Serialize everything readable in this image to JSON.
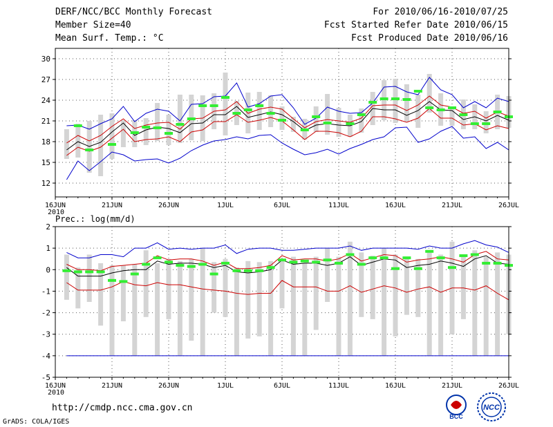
{
  "header": {
    "title": "DERF/NCC/BCC Monthly Forecast",
    "member_size": "Member Size=40",
    "variable": "Mean Surf. Temp.: °C",
    "period": "For 2010/06/16-2010/07/25",
    "started": "Fcst Started Refer Date 2010/06/15",
    "produced": "Fcst Produced Date 2010/06/16"
  },
  "footer": {
    "url": "http://cmdp.ncc.cma.gov.cn",
    "grads": "GrADS: COLA/IGES",
    "logo_bcc": "BCC",
    "logo_ncc": "NCC"
  },
  "colors": {
    "ensemble_mean": "#000000",
    "spread": "#cc0000",
    "extremes": "#0000cc",
    "bars": "#d4d4d4",
    "climatology": "#33ee33",
    "frame": "#000000"
  },
  "chart_data": [
    {
      "type": "line",
      "name": "temperature",
      "ylabel": "Mean Surf. Temp.: °C",
      "ylim": [
        10,
        31.5
      ],
      "yticks": [
        12,
        15,
        18,
        21,
        24,
        27,
        30
      ],
      "x": [
        1,
        2,
        3,
        4,
        5,
        6,
        7,
        8,
        9,
        10,
        11,
        12,
        13,
        14,
        15,
        16,
        17,
        18,
        19,
        20,
        21,
        22,
        23,
        24,
        25,
        26,
        27,
        28,
        29,
        30,
        31,
        32,
        33,
        34,
        35,
        36,
        37,
        38,
        39,
        40
      ],
      "xticks": [
        {
          "x": 0,
          "label": "16JUN",
          "sub": "2010"
        },
        {
          "x": 5,
          "label": "21JUN"
        },
        {
          "x": 10,
          "label": "26JUN"
        },
        {
          "x": 15,
          "label": "1JUL"
        },
        {
          "x": 20,
          "label": "6JUL"
        },
        {
          "x": 25,
          "label": "11JUL"
        },
        {
          "x": 30,
          "label": "16JUL"
        },
        {
          "x": 35,
          "label": "21JUL"
        },
        {
          "x": 40,
          "label": "26JUL"
        }
      ],
      "xlim": [
        0,
        40
      ],
      "series": [
        {
          "name": "max",
          "values": [
            12.5,
            15.2,
            13.8,
            15.1,
            16.5,
            16.1,
            15.2,
            15.4,
            15.5,
            14.9,
            15.6,
            16.7,
            17.5,
            18.1,
            18.3,
            18.7,
            18.4,
            18.9,
            19.0,
            17.8,
            16.9,
            16.1,
            16.4,
            16.9,
            16.2,
            17.0,
            17.6,
            18.3,
            18.7,
            20.0,
            20.1,
            17.9,
            18.4,
            19.5,
            20.2,
            18.5,
            18.7,
            17.0,
            17.9,
            16.8
          ]
        },
        {
          "name": "min",
          "values": [
            20.3,
            20.4,
            19.8,
            20.6,
            21.3,
            23.1,
            20.9,
            22.1,
            22.7,
            22.4,
            21.0,
            23.4,
            23.5,
            24.5,
            24.6,
            26.5,
            23.0,
            23.5,
            24.6,
            24.8,
            22.9,
            20.5,
            21.4,
            23.0,
            22.4,
            22.1,
            22.2,
            23.6,
            25.9,
            26.0,
            25.2,
            24.8,
            27.3,
            25.5,
            24.8,
            22.9,
            23.8,
            22.9,
            24.3,
            23.8
          ]
        },
        {
          "name": "mean",
          "values": [
            16.8,
            18.0,
            17.3,
            17.9,
            19.4,
            20.7,
            18.9,
            19.7,
            20.1,
            19.9,
            19.3,
            20.6,
            20.7,
            21.9,
            21.9,
            23.1,
            21.5,
            21.9,
            22.3,
            21.9,
            20.9,
            19.6,
            20.4,
            20.6,
            20.4,
            20.3,
            20.9,
            22.8,
            22.6,
            22.6,
            21.8,
            22.5,
            23.8,
            22.6,
            22.5,
            21.2,
            21.6,
            21.0,
            21.8,
            21.1
          ]
        },
        {
          "name": "lower",
          "values": [
            16.0,
            17.2,
            16.6,
            17.2,
            18.5,
            19.8,
            18.0,
            18.3,
            18.4,
            18.7,
            18.0,
            19.4,
            19.7,
            20.9,
            20.9,
            21.9,
            20.8,
            21.1,
            21.5,
            21.0,
            19.7,
            18.3,
            19.5,
            19.5,
            19.3,
            18.7,
            19.5,
            21.6,
            21.6,
            21.3,
            20.8,
            21.4,
            22.8,
            21.4,
            21.4,
            20.4,
            20.6,
            19.7,
            20.3,
            19.9
          ]
        },
        {
          "name": "upper",
          "values": [
            17.8,
            18.9,
            18.1,
            18.9,
            20.2,
            21.3,
            19.9,
            20.4,
            20.7,
            20.8,
            19.8,
            21.3,
            21.4,
            22.4,
            22.6,
            23.8,
            22.1,
            22.7,
            23.0,
            22.7,
            21.3,
            20.0,
            20.9,
            21.2,
            21.0,
            20.8,
            21.4,
            23.2,
            23.3,
            23.3,
            22.5,
            23.3,
            24.6,
            23.3,
            23.0,
            22.1,
            22.4,
            21.4,
            22.3,
            21.7
          ]
        },
        {
          "name": "bar_low",
          "values": [
            15.5,
            15.7,
            13.5,
            13.0,
            15.5,
            17.2,
            17.2,
            17.5,
            18.1,
            17.5,
            17.8,
            18.2,
            18.1,
            19.8,
            18.9,
            20.4,
            19.2,
            19.7,
            20.1,
            19.7,
            19.4,
            18.3,
            19.4,
            19.0,
            18.7,
            18.7,
            19.3,
            20.4,
            21.1,
            20.7,
            20.9,
            20.0,
            22.2,
            20.3,
            20.3,
            19.8,
            19.8,
            19.2,
            19.8,
            20.0
          ]
        },
        {
          "name": "bar_high",
          "values": [
            19.8,
            20.6,
            21.0,
            21.9,
            22.1,
            21.1,
            21.1,
            21.4,
            23.6,
            21.9,
            24.8,
            24.8,
            24.7,
            25.0,
            28.0,
            23.9,
            25.1,
            25.2,
            24.7,
            23.1,
            21.6,
            21.3,
            23.1,
            24.9,
            22.9,
            21.9,
            22.8,
            25.2,
            26.9,
            27.1,
            26.3,
            24.8,
            27.8,
            25.0,
            22.9,
            24.1,
            23.4,
            22.4,
            24.8,
            24.6
          ]
        },
        {
          "name": "climatology",
          "values": [
            null,
            20.3,
            16.8,
            null,
            17.6,
            null,
            19.3,
            20.1,
            20.0,
            19.2,
            20.5,
            21.3,
            23.2,
            23.2,
            24.4,
            22.1,
            22.6,
            23.2,
            22.1,
            21.1,
            null,
            19.7,
            21.6,
            20.7,
            null,
            20.6,
            21.9,
            23.7,
            24.2,
            24.2,
            24.1,
            25.3,
            22.9,
            22.6,
            22.9,
            21.9,
            20.6,
            20.6,
            22.3,
            21.6
          ]
        }
      ]
    },
    {
      "type": "line",
      "name": "precipitation",
      "ylabel": "Prec.: log(mm/d)",
      "ylim": [
        -5,
        2
      ],
      "yticks": [
        -5,
        -4,
        -3,
        -2,
        -1,
        0,
        1,
        2
      ],
      "x": [
        1,
        2,
        3,
        4,
        5,
        6,
        7,
        8,
        9,
        10,
        11,
        12,
        13,
        14,
        15,
        16,
        17,
        18,
        19,
        20,
        21,
        22,
        23,
        24,
        25,
        26,
        27,
        28,
        29,
        30,
        31,
        32,
        33,
        34,
        35,
        36,
        37,
        38,
        39,
        40
      ],
      "xticks": [
        {
          "x": 0,
          "label": "16JUN",
          "sub": "2010"
        },
        {
          "x": 5,
          "label": "21JUN"
        },
        {
          "x": 10,
          "label": "26JUN"
        },
        {
          "x": 15,
          "label": "1JUL"
        },
        {
          "x": 20,
          "label": "6JUL"
        },
        {
          "x": 25,
          "label": "11JUL"
        },
        {
          "x": 30,
          "label": "16JUL"
        },
        {
          "x": 35,
          "label": "21JUL"
        },
        {
          "x": 40,
          "label": "26JUL"
        }
      ],
      "xlim": [
        0,
        40
      ],
      "series": [
        {
          "name": "max",
          "values": [
            0.8,
            0.55,
            0.55,
            0.7,
            0.7,
            0.6,
            1.0,
            1.0,
            1.25,
            0.95,
            1.0,
            0.95,
            1.0,
            1.0,
            1.15,
            0.75,
            0.95,
            1.0,
            1.0,
            0.9,
            0.9,
            0.95,
            1.0,
            1.0,
            1.0,
            1.1,
            0.9,
            1.0,
            1.0,
            1.0,
            1.0,
            0.95,
            1.1,
            1.0,
            1.0,
            1.2,
            1.35,
            1.15,
            1.05,
            0.8
          ]
        },
        {
          "name": "min",
          "values": [
            -4,
            -4,
            -4,
            -4,
            -4,
            -4,
            -4,
            -4,
            -4,
            -4,
            -4,
            -4,
            -4,
            -4,
            -4,
            -4,
            -4,
            -4,
            -4,
            -4,
            -4,
            -4,
            -4,
            -4,
            -4,
            -4,
            -4,
            -4,
            -4,
            -4,
            -4,
            -4,
            -4,
            -4,
            -4,
            -4,
            -4,
            -4,
            -4,
            -4
          ]
        },
        {
          "name": "mean",
          "values": [
            0.1,
            -0.3,
            -0.3,
            -0.3,
            -0.15,
            -0.05,
            0.0,
            0.0,
            0.4,
            0.25,
            0.3,
            0.3,
            0.25,
            0.1,
            0.2,
            -0.1,
            -0.15,
            -0.1,
            0.0,
            0.45,
            0.25,
            0.3,
            0.3,
            0.2,
            0.3,
            0.6,
            0.2,
            0.35,
            0.5,
            0.45,
            0.1,
            0.2,
            0.25,
            0.4,
            0.3,
            0.15,
            0.5,
            0.65,
            0.3,
            0.25
          ]
        },
        {
          "name": "lower",
          "values": [
            -0.6,
            -0.95,
            -0.95,
            -0.95,
            -0.8,
            -0.55,
            -0.7,
            -0.75,
            -0.6,
            -0.7,
            -0.7,
            -0.8,
            -0.9,
            -0.95,
            -1.0,
            -1.1,
            -1.15,
            -1.1,
            -1.1,
            -0.5,
            -0.8,
            -0.8,
            -0.8,
            -1.0,
            -1.0,
            -0.75,
            -1.05,
            -0.9,
            -0.75,
            -0.85,
            -1.05,
            -0.9,
            -0.8,
            -1.05,
            -0.85,
            -0.85,
            -0.95,
            -0.75,
            -1.1,
            -1.4
          ]
        },
        {
          "name": "upper",
          "values": [
            0.25,
            0.0,
            0.0,
            -0.05,
            0.15,
            0.2,
            0.25,
            0.3,
            0.65,
            0.45,
            0.5,
            0.5,
            0.4,
            0.2,
            0.35,
            0.05,
            0.05,
            0.1,
            0.2,
            0.65,
            0.45,
            0.5,
            0.5,
            0.4,
            0.5,
            0.75,
            0.4,
            0.55,
            0.7,
            0.65,
            0.35,
            0.45,
            0.5,
            0.6,
            0.5,
            0.35,
            0.7,
            0.85,
            0.5,
            0.45
          ]
        },
        {
          "name": "bar_low",
          "values": [
            -1.4,
            -1.8,
            -1.5,
            -2.6,
            -4.0,
            -2.4,
            -4.0,
            -2.2,
            -4.0,
            -2.3,
            -4.0,
            -3.3,
            -4.0,
            -2.0,
            -2.2,
            -4.0,
            -3.2,
            -3.1,
            -4.0,
            -1.8,
            -4.0,
            -4.0,
            -2.8,
            -1.5,
            -4.0,
            -4.0,
            -2.2,
            -2.3,
            -4.0,
            -3.1,
            -2.1,
            -2.2,
            -4.0,
            -4.0,
            -3.0,
            -2.3,
            -4.0,
            -4.0,
            -4.0,
            -3.0
          ]
        },
        {
          "name": "bar_high",
          "values": [
            0.7,
            0.1,
            0.7,
            0.3,
            0.2,
            0.2,
            0.25,
            0.9,
            0.3,
            0.5,
            0.4,
            0.5,
            1.0,
            0.35,
            0.5,
            0.1,
            0.4,
            0.35,
            0.4,
            0.5,
            0.6,
            0.3,
            0.6,
            1.0,
            0.6,
            1.3,
            0.8,
            0.65,
            1.0,
            0.7,
            0.55,
            0.5,
            0.8,
            0.7,
            1.3,
            0.7,
            0.9,
            0.6,
            0.8,
            0.7
          ]
        },
        {
          "name": "climatology",
          "values": [
            -0.05,
            -0.1,
            -0.1,
            -0.1,
            -0.5,
            -0.55,
            -0.2,
            0.25,
            0.55,
            0.35,
            0.2,
            0.15,
            0.25,
            -0.2,
            0.3,
            -0.05,
            -0.05,
            -0.05,
            0.1,
            0.45,
            0.35,
            0.4,
            0.35,
            0.45,
            0.3,
            0.7,
            0.25,
            0.55,
            0.55,
            0.05,
            0.55,
            0.05,
            0.85,
            0.55,
            0.1,
            0.65,
            0.7,
            0.3,
            0.3,
            0.2
          ]
        }
      ]
    }
  ]
}
